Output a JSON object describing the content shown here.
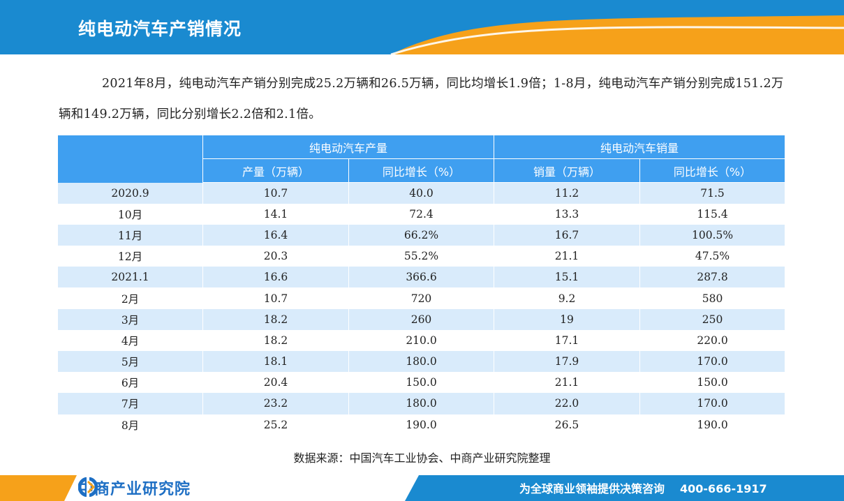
{
  "header": {
    "title": "纯电动汽车产销情况"
  },
  "intro": "2021年8月，纯电动汽车产销分别完成25.2万辆和26.5万辆，同比均增长1.9倍；1-8月，纯电动汽车产销分别完成151.2万辆和149.2万辆，同比分别增长2.2倍和2.1倍。",
  "table": {
    "group_headers": [
      "纯电动汽车产量",
      "纯电动汽车销量"
    ],
    "sub_headers": [
      "产量（万辆）",
      "同比增长（%）",
      "销量（万辆）",
      "同比增长（%）"
    ],
    "rows": [
      [
        "2020.9",
        "10.7",
        "40.0",
        "11.2",
        "71.5"
      ],
      [
        "10月",
        "14.1",
        "72.4",
        "13.3",
        "115.4"
      ],
      [
        "11月",
        "16.4",
        "66.2%",
        "16.7",
        "100.5%"
      ],
      [
        "12月",
        "20.3",
        "55.2%",
        "21.1",
        "47.5%"
      ],
      [
        "2021.1",
        "16.6",
        "366.6",
        "15.1",
        "287.8"
      ],
      [
        "2月",
        "10.7",
        "720",
        "9.2",
        "580"
      ],
      [
        "3月",
        "18.2",
        "260",
        "19",
        "250"
      ],
      [
        "4月",
        "18.2",
        "210.0",
        "17.1",
        "220.0"
      ],
      [
        "5月",
        "18.1",
        "180.0",
        "17.9",
        "170.0"
      ],
      [
        "6月",
        "20.4",
        "150.0",
        "21.1",
        "150.0"
      ],
      [
        "7月",
        "23.2",
        "180.0",
        "22.0",
        "170.0"
      ],
      [
        "8月",
        "25.2",
        "190.0",
        "26.5",
        "190.0"
      ]
    ]
  },
  "source": "数据来源：中国汽车工业协会、中商产业研究院整理",
  "footer": {
    "logo_text": "中商产业研究院",
    "slogan": "为全球商业领袖提供决策咨询",
    "phone": "400-666-1917"
  },
  "colors": {
    "header_blue": "#1a8ad0",
    "accent_orange": "#f6a11a",
    "table_header_blue": "#3f9ff0",
    "row_stripe": "#d9ebfb",
    "logo_blue": "#1e6fc4"
  }
}
